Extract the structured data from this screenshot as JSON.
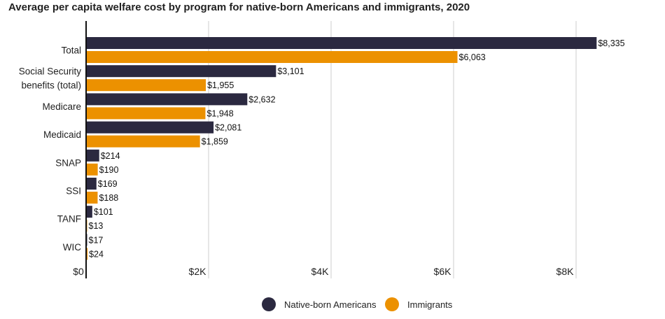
{
  "chart_data": {
    "type": "bar",
    "orientation": "horizontal",
    "title": "Average per capita welfare cost by program for native-born Americans and immigrants, 2020",
    "categories": [
      "Total",
      "Social Security benefits (total)",
      "Medicare",
      "Medicaid",
      "SNAP",
      "SSI",
      "TANF",
      "WIC"
    ],
    "category_lines": [
      [
        "Total"
      ],
      [
        "Social Security",
        "benefits (total)"
      ],
      [
        "Medicare"
      ],
      [
        "Medicaid"
      ],
      [
        "SNAP"
      ],
      [
        "SSI"
      ],
      [
        "TANF"
      ],
      [
        "WIC"
      ]
    ],
    "series": [
      {
        "name": "Native-born Americans",
        "color": "#2b2940",
        "values": [
          8335,
          3101,
          2632,
          2081,
          214,
          169,
          101,
          17
        ],
        "labels": [
          "$8,335",
          "$3,101",
          "$2,632",
          "$2,081",
          "$214",
          "$169",
          "$101",
          "$17"
        ]
      },
      {
        "name": "Immigrants",
        "color": "#ec9100",
        "values": [
          6063,
          1955,
          1948,
          1859,
          190,
          188,
          13,
          24
        ],
        "labels": [
          "$6,063",
          "$1,955",
          "$1,948",
          "$1,859",
          "$190",
          "$188",
          "$13",
          "$24"
        ]
      }
    ],
    "xlim": [
      0,
      8600
    ],
    "xticks": [
      0,
      2000,
      4000,
      6000,
      8000
    ],
    "xtick_labels": [
      "$0",
      "$2K",
      "$4K",
      "$6K",
      "$8K"
    ],
    "grid": true,
    "legend_position": "bottom-center",
    "xlabel": "",
    "ylabel": ""
  }
}
